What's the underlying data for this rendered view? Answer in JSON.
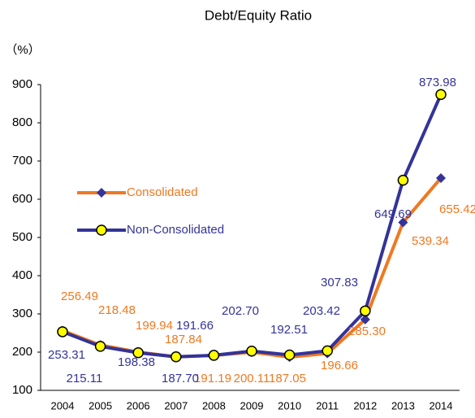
{
  "chart_data": {
    "type": "line",
    "title": "Debt/Equity Ratio",
    "y_label": "（%）",
    "categories": [
      "2004",
      "2005",
      "2006",
      "2007",
      "2008",
      "2009",
      "2010",
      "2011",
      "2012",
      "2013",
      "2014"
    ],
    "series": [
      {
        "name": "Consolidated",
        "color": "#f07820",
        "marker": "diamond",
        "marker_color": "#333399",
        "values": [
          256.49,
          218.48,
          199.94,
          187.84,
          191.19,
          200.11,
          187.05,
          196.66,
          285.3,
          539.34,
          655.42
        ],
        "value_labels": [
          "256.49",
          "218.48",
          "199.94",
          "187.84",
          "191.19",
          "200.11",
          "187.05",
          "196.66",
          "285.30",
          "539.34",
          "655.42"
        ]
      },
      {
        "name": "Non-Consolidated",
        "color": "#333399",
        "marker": "circle",
        "marker_color": "#ffff00",
        "values": [
          253.31,
          215.11,
          198.38,
          187.7,
          191.66,
          202.7,
          192.51,
          203.42,
          307.83,
          649.69,
          873.98
        ],
        "value_labels": [
          "253.31",
          "215.11",
          "198.38",
          "187.70",
          "191.66",
          "202.70",
          "192.51",
          "203.42",
          "307.83",
          "649.69",
          "873.98"
        ]
      }
    ],
    "ylim": [
      100,
      900
    ],
    "yticks": [
      100,
      200,
      300,
      400,
      500,
      600,
      700,
      800,
      900
    ],
    "grid": false
  }
}
